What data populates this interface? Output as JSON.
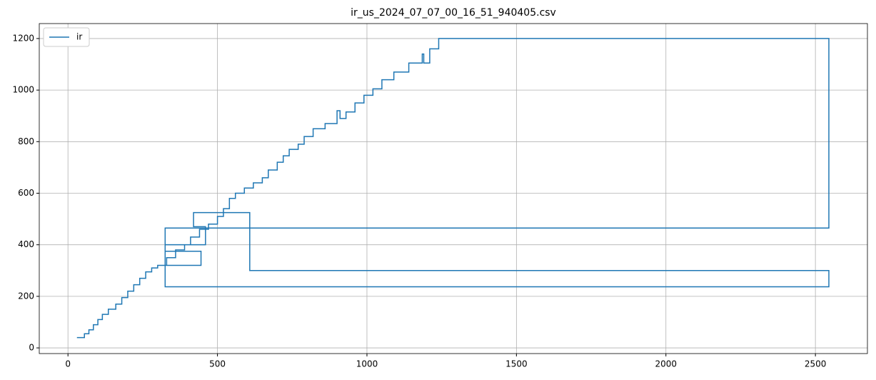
{
  "chart_data": {
    "type": "line",
    "title": "ir_us_2024_07_07_00_16_51_940405.csv",
    "x": [
      30,
      55,
      55,
      70,
      70,
      85,
      85,
      100,
      100,
      115,
      115,
      135,
      135,
      160,
      160,
      180,
      180,
      200,
      200,
      220,
      220,
      240,
      240,
      260,
      260,
      280,
      280,
      300,
      300,
      330,
      330,
      360,
      360,
      390,
      390,
      410,
      410,
      440,
      440,
      470,
      470,
      500,
      500,
      520,
      520,
      540,
      540,
      560,
      560,
      590,
      590,
      620,
      620,
      650,
      650,
      670,
      670,
      700,
      700,
      720,
      720,
      740,
      740,
      770,
      770,
      790,
      790,
      820,
      820,
      860,
      860,
      900,
      900,
      910,
      910,
      930,
      930,
      960,
      960,
      990,
      990,
      1020,
      1020,
      1050,
      1050,
      1090,
      1090,
      1140,
      1140,
      1185,
      1185,
      1190,
      1190,
      1210,
      1210,
      1240,
      1240,
      2545,
      2545,
      325,
      325,
      2545,
      2545,
      608,
      608,
      420,
      420,
      460,
      460,
      325,
      325,
      445,
      445,
      325,
      325
    ],
    "series": [
      {
        "name": "ir",
        "color": "#1f77b4",
        "values": [
          40,
          40,
          55,
          55,
          70,
          70,
          90,
          90,
          110,
          110,
          130,
          130,
          150,
          150,
          170,
          170,
          195,
          195,
          220,
          220,
          245,
          245,
          270,
          270,
          295,
          295,
          310,
          310,
          320,
          320,
          350,
          350,
          380,
          380,
          400,
          400,
          430,
          430,
          460,
          460,
          480,
          480,
          510,
          510,
          540,
          540,
          580,
          580,
          600,
          600,
          620,
          620,
          640,
          640,
          660,
          660,
          690,
          690,
          720,
          720,
          745,
          745,
          770,
          770,
          790,
          790,
          820,
          820,
          850,
          850,
          870,
          870,
          920,
          920,
          890,
          890,
          915,
          915,
          950,
          950,
          980,
          980,
          1005,
          1005,
          1040,
          1040,
          1070,
          1070,
          1105,
          1105,
          1140,
          1140,
          1105,
          1105,
          1160,
          1160,
          1200,
          1200,
          465,
          465,
          237,
          237,
          300,
          300,
          525,
          525,
          470,
          470,
          400,
          400,
          375,
          375,
          320,
          320,
          280
        ]
      }
    ],
    "xlim": [
      -96,
      2674
    ],
    "ylim": [
      -22,
      1258
    ],
    "xticks": [
      0,
      500,
      1000,
      1500,
      2000,
      2500
    ],
    "yticks": [
      0,
      200,
      400,
      600,
      800,
      1000,
      1200
    ],
    "grid": true,
    "legend": "upper-left"
  }
}
